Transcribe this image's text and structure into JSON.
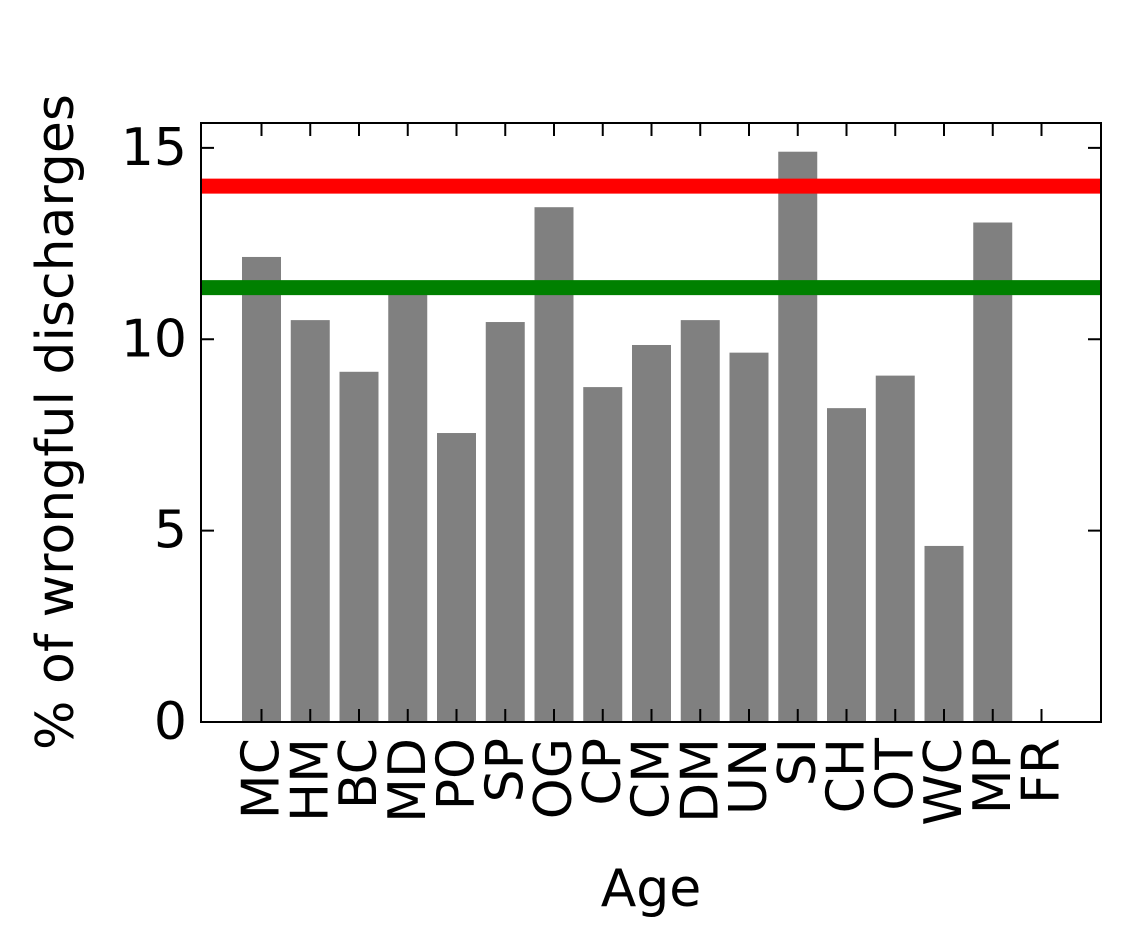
{
  "chart_data": {
    "type": "bar",
    "title": "",
    "xlabel": "Age",
    "ylabel": "% of wrongful discharges",
    "categories": [
      "MC",
      "HM",
      "BC",
      "MD",
      "PO",
      "SP",
      "OG",
      "CP",
      "CM",
      "DM",
      "UN",
      "SI",
      "CH",
      "OT",
      "WC",
      "MP",
      "FR"
    ],
    "values": [
      12.15,
      10.5,
      9.15,
      11.45,
      7.55,
      10.45,
      13.45,
      8.75,
      9.85,
      10.5,
      9.65,
      14.9,
      8.2,
      9.05,
      4.6,
      13.05,
      0
    ],
    "bar_color": "#808080",
    "ylim": [
      0,
      15.65
    ],
    "yticks": [
      0,
      5,
      10,
      15
    ],
    "grid": false,
    "reference_lines": [
      {
        "value": 14.0,
        "color": "#ff0000"
      },
      {
        "value": 11.35,
        "color": "#008000"
      }
    ]
  }
}
